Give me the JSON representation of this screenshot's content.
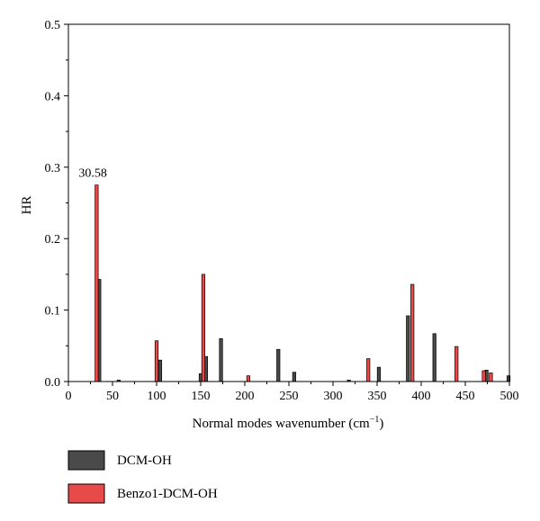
{
  "chart_data": {
    "type": "bar",
    "xlabel": "Normal modes wavenumber (cm",
    "xlabel_sup": "−1",
    "xlabel_end": ")",
    "ylabel": "HR",
    "xlim": [
      0,
      500
    ],
    "ylim": [
      0,
      0.5
    ],
    "xticks": [
      0,
      50,
      100,
      150,
      200,
      250,
      300,
      350,
      400,
      450,
      500
    ],
    "yticks": [
      0.0,
      0.1,
      0.2,
      0.3,
      0.4,
      0.5
    ],
    "ytick_labels": [
      "0.0",
      "0.1",
      "0.2",
      "0.3",
      "0.4",
      "0.5"
    ],
    "grid": false,
    "legend_position": "bottom-left, below plot",
    "series": [
      {
        "name": "DCM-OH",
        "color": "#4a4a4a",
        "points": [
          {
            "x": 35,
            "y": 0.143
          },
          {
            "x": 57,
            "y": 0.002
          },
          {
            "x": 104,
            "y": 0.03
          },
          {
            "x": 150,
            "y": 0.011
          },
          {
            "x": 156,
            "y": 0.035
          },
          {
            "x": 173,
            "y": 0.06
          },
          {
            "x": 238,
            "y": 0.045
          },
          {
            "x": 256,
            "y": 0.013
          },
          {
            "x": 318,
            "y": 0.002
          },
          {
            "x": 352,
            "y": 0.02
          },
          {
            "x": 385,
            "y": 0.092
          },
          {
            "x": 415,
            "y": 0.067
          },
          {
            "x": 474,
            "y": 0.016
          },
          {
            "x": 499,
            "y": 0.008
          }
        ]
      },
      {
        "name": "Benzo1-DCM-OH",
        "color": "#e84a4a",
        "points": [
          {
            "x": 32,
            "y": 0.275
          },
          {
            "x": 100,
            "y": 0.057
          },
          {
            "x": 153,
            "y": 0.15
          },
          {
            "x": 204,
            "y": 0.008
          },
          {
            "x": 340,
            "y": 0.032
          },
          {
            "x": 390,
            "y": 0.136
          },
          {
            "x": 440,
            "y": 0.049
          },
          {
            "x": 471,
            "y": 0.015
          },
          {
            "x": 479,
            "y": 0.012
          }
        ]
      }
    ],
    "annotations": [
      {
        "text": "30.58",
        "x": 32,
        "y": 0.275
      }
    ]
  }
}
